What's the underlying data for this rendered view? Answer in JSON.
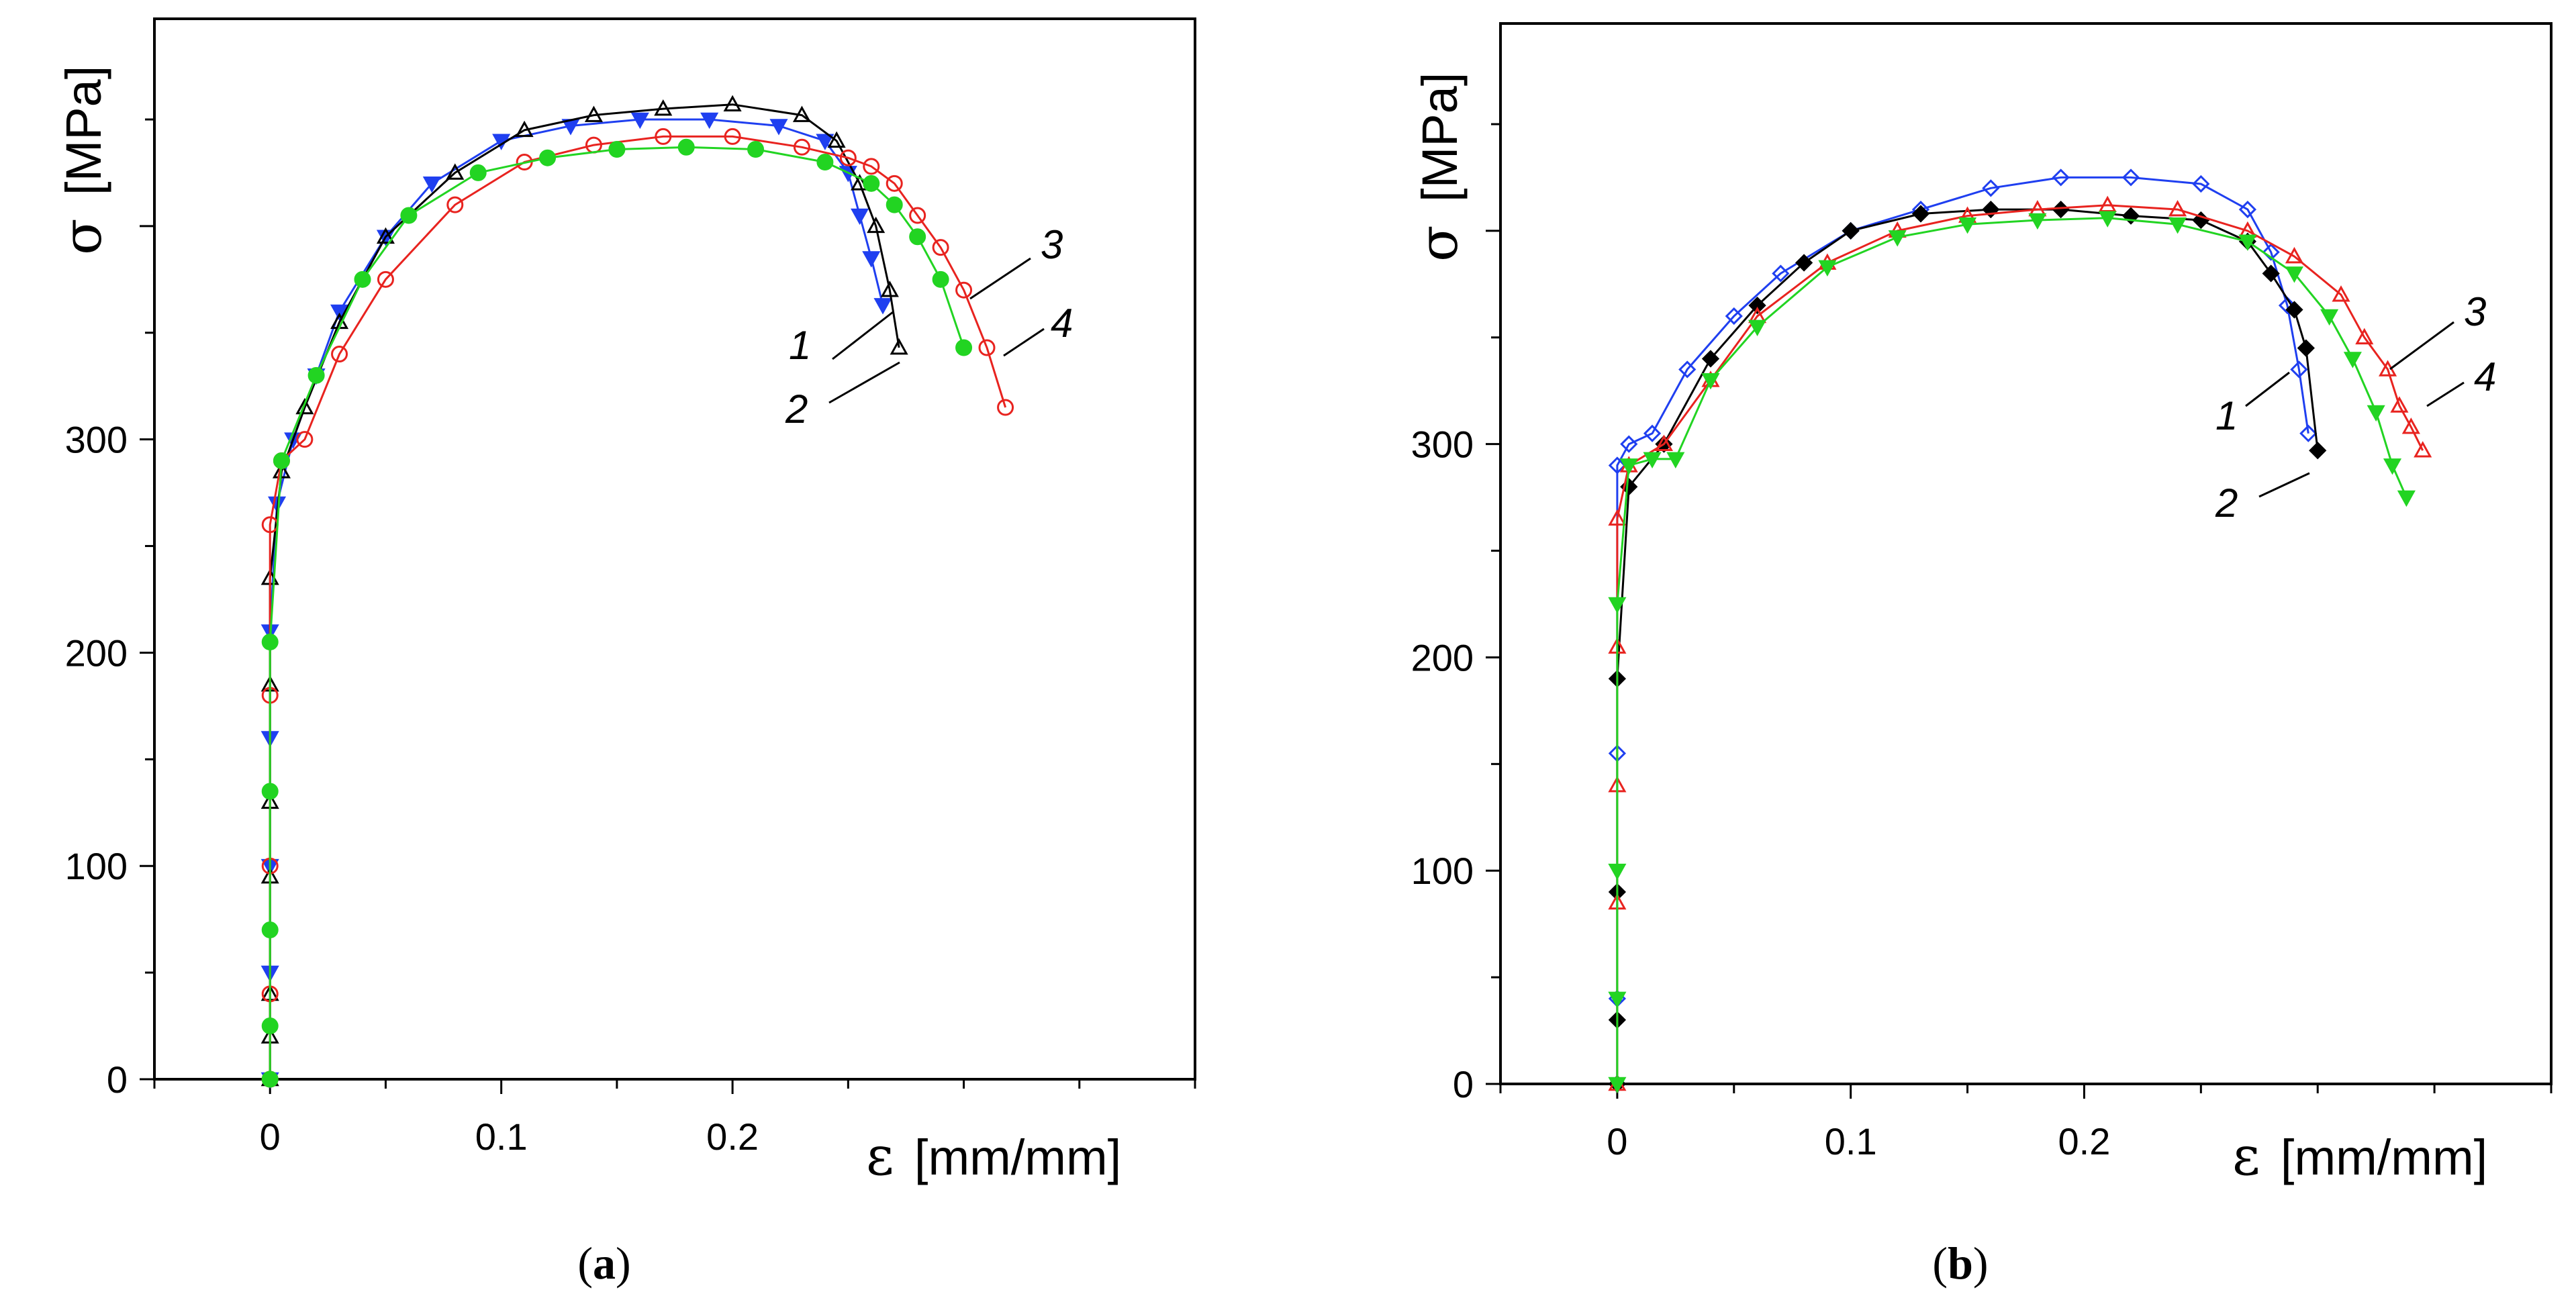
{
  "chart_data": [
    {
      "type": "scatter",
      "panel": "a",
      "caption": {
        "open": "(",
        "letter": "a",
        "close": ")"
      },
      "xlabel": {
        "symbol": "ε",
        "unit": "[mm/mm]"
      },
      "ylabel": {
        "symbol": "σ",
        "unit": "[MPa]"
      },
      "xlim": [
        -0.05,
        0.4
      ],
      "ylim": [
        0,
        500
      ],
      "xticks": [
        0,
        0.1,
        0.2
      ],
      "xtick_labels": [
        "0",
        "0.1",
        "0.2"
      ],
      "yticks": [
        0,
        100,
        200,
        300
      ],
      "ytick_labels": [
        "0",
        "100",
        "200",
        "300"
      ],
      "series": [
        {
          "name": "1",
          "color": "#1f3ff0",
          "marker": "triangle-down",
          "filled": true,
          "x": [
            0,
            0,
            0,
            0,
            0,
            0.003,
            0.01,
            0.02,
            0.03,
            0.05,
            0.07,
            0.1,
            0.13,
            0.16,
            0.19,
            0.22,
            0.24,
            0.25,
            0.255,
            0.26,
            0.265
          ],
          "y": [
            0,
            50,
            100,
            160,
            210,
            270,
            300,
            330,
            360,
            395,
            420,
            440,
            447,
            450,
            450,
            447,
            440,
            425,
            405,
            385,
            363
          ]
        },
        {
          "name": "2",
          "color": "#000000",
          "marker": "triangle-up",
          "filled": false,
          "x": [
            0,
            0,
            0,
            0,
            0,
            0,
            0,
            0.005,
            0.015,
            0.03,
            0.05,
            0.08,
            0.11,
            0.14,
            0.17,
            0.2,
            0.23,
            0.245,
            0.255,
            0.262,
            0.268,
            0.272
          ],
          "y": [
            0,
            20,
            40,
            95,
            130,
            185,
            235,
            285,
            315,
            355,
            395,
            425,
            445,
            452,
            455,
            457,
            452,
            440,
            420,
            400,
            370,
            343
          ]
        },
        {
          "name": "3",
          "color": "#e8231f",
          "marker": "circle",
          "filled": false,
          "x": [
            0,
            0,
            0,
            0,
            0,
            0.005,
            0.015,
            0.03,
            0.05,
            0.08,
            0.11,
            0.14,
            0.17,
            0.2,
            0.23,
            0.25,
            0.26,
            0.27,
            0.28,
            0.29,
            0.3,
            0.31,
            0.318
          ],
          "y": [
            0,
            40,
            100,
            180,
            260,
            290,
            300,
            340,
            375,
            410,
            430,
            438,
            442,
            442,
            437,
            432,
            428,
            420,
            405,
            390,
            370,
            343,
            315
          ]
        },
        {
          "name": "4",
          "color": "#22d422",
          "marker": "circle",
          "filled": true,
          "x": [
            0,
            0,
            0,
            0,
            0,
            0.005,
            0.02,
            0.04,
            0.06,
            0.09,
            0.12,
            0.15,
            0.18,
            0.21,
            0.24,
            0.26,
            0.27,
            0.28,
            0.29,
            0.3
          ],
          "y": [
            0,
            25,
            70,
            135,
            205,
            290,
            330,
            375,
            405,
            425,
            432,
            436,
            437,
            436,
            430,
            420,
            410,
            395,
            375,
            343
          ]
        }
      ],
      "annotations": [
        "1",
        "2",
        "3",
        "4"
      ]
    },
    {
      "type": "scatter",
      "panel": "b",
      "caption": {
        "open": "(",
        "letter": "b",
        "close": ")"
      },
      "xlabel": {
        "symbol": "ε",
        "unit": "[mm/mm]"
      },
      "ylabel": {
        "symbol": "σ",
        "unit": "[MPa]"
      },
      "xlim": [
        -0.05,
        0.4
      ],
      "ylim": [
        0,
        500
      ],
      "xticks": [
        0,
        0.1,
        0.2
      ],
      "xtick_labels": [
        "0",
        "0.1",
        "0.2"
      ],
      "yticks": [
        0,
        100,
        200,
        300
      ],
      "ytick_labels": [
        "0",
        "100",
        "200",
        "300"
      ],
      "series": [
        {
          "name": "1",
          "color": "#1f3ff0",
          "marker": "diamond",
          "filled": false,
          "x": [
            0,
            0,
            0,
            0,
            0.005,
            0.015,
            0.03,
            0.05,
            0.07,
            0.1,
            0.13,
            0.16,
            0.19,
            0.22,
            0.25,
            0.27,
            0.28,
            0.287,
            0.292,
            0.296
          ],
          "y": [
            0,
            40,
            155,
            290,
            300,
            305,
            335,
            360,
            380,
            400,
            410,
            420,
            425,
            425,
            422,
            410,
            390,
            365,
            335,
            305
          ]
        },
        {
          "name": "2",
          "color": "#000000",
          "marker": "diamond",
          "filled": true,
          "x": [
            0,
            0,
            0,
            0,
            0.005,
            0.02,
            0.04,
            0.06,
            0.08,
            0.1,
            0.13,
            0.16,
            0.19,
            0.22,
            0.25,
            0.27,
            0.28,
            0.29,
            0.295,
            0.3
          ],
          "y": [
            0,
            30,
            90,
            190,
            280,
            300,
            340,
            365,
            385,
            400,
            408,
            410,
            410,
            407,
            405,
            395,
            380,
            363,
            345,
            297
          ]
        },
        {
          "name": "3",
          "color": "#e8231f",
          "marker": "triangle-up",
          "filled": false,
          "x": [
            0,
            0,
            0,
            0,
            0,
            0.005,
            0.02,
            0.04,
            0.06,
            0.09,
            0.12,
            0.15,
            0.18,
            0.21,
            0.24,
            0.27,
            0.29,
            0.31,
            0.32,
            0.33,
            0.335,
            0.34,
            0.345
          ],
          "y": [
            0,
            85,
            140,
            205,
            265,
            290,
            300,
            330,
            360,
            385,
            400,
            407,
            410,
            412,
            410,
            400,
            388,
            370,
            350,
            335,
            318,
            308,
            297
          ]
        },
        {
          "name": "4",
          "color": "#22d422",
          "marker": "triangle-down",
          "filled": true,
          "x": [
            0,
            0,
            0,
            0,
            0.005,
            0.015,
            0.025,
            0.04,
            0.06,
            0.09,
            0.12,
            0.15,
            0.18,
            0.21,
            0.24,
            0.27,
            0.29,
            0.305,
            0.315,
            0.325,
            0.332,
            0.338
          ],
          "y": [
            0,
            40,
            100,
            225,
            290,
            293,
            293,
            330,
            355,
            383,
            397,
            403,
            405,
            406,
            403,
            395,
            380,
            360,
            340,
            315,
            290,
            275
          ]
        }
      ],
      "annotations": [
        "1",
        "2",
        "3",
        "4"
      ]
    }
  ]
}
